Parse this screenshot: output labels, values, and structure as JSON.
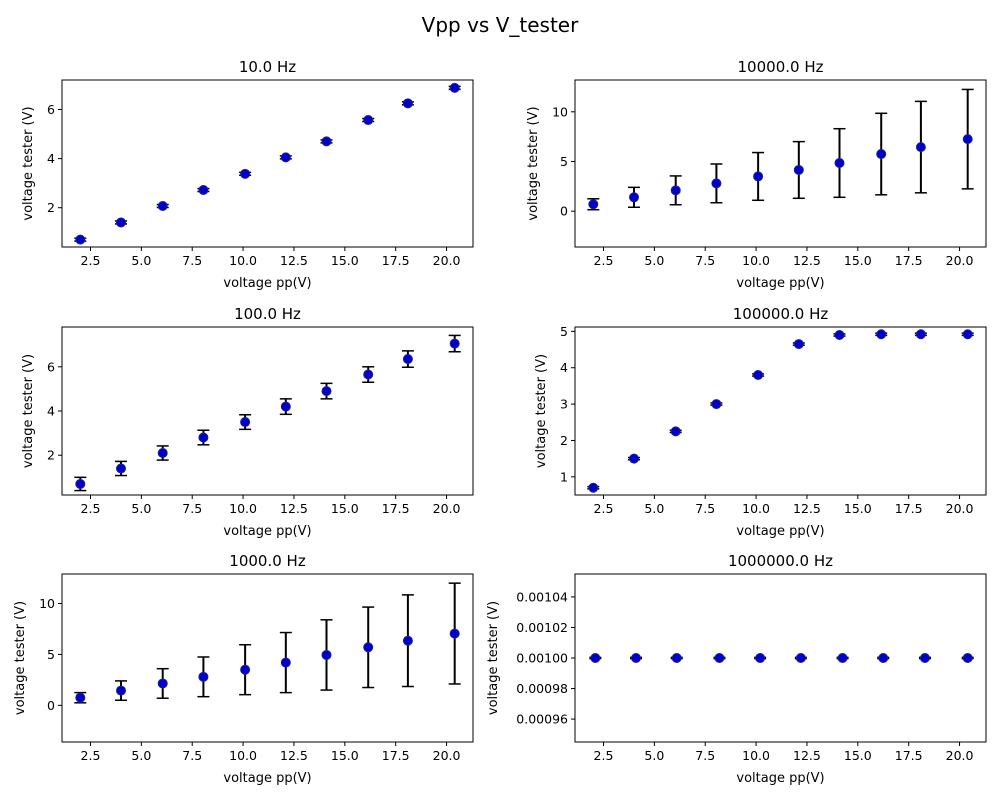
{
  "figure": {
    "suptitle": "Vpp vs V_tester"
  },
  "colors": {
    "marker_face": "#0000cc",
    "marker_edge": "#1f1f8f",
    "error_bar": "#000000"
  },
  "chart_data": [
    {
      "type": "scatter",
      "title": "10.0 Hz",
      "xlabel": "voltage pp(V)",
      "ylabel": "voltage tester (V)",
      "xlim": [
        1.1,
        21.3
      ],
      "ylim": [
        0.4,
        7.2
      ],
      "xticks": [
        2.5,
        5.0,
        7.5,
        10.0,
        12.5,
        15.0,
        17.5,
        20.0
      ],
      "xtick_labels": [
        "2.5",
        "5.0",
        "7.5",
        "10.0",
        "12.5",
        "15.0",
        "17.5",
        "20.0"
      ],
      "yticks": [
        2,
        4,
        6
      ],
      "ytick_labels": [
        "2",
        "4",
        "6"
      ],
      "x": [
        2.0,
        4.0,
        6.05,
        8.05,
        10.1,
        12.1,
        14.1,
        16.15,
        18.1,
        20.4
      ],
      "y": [
        0.7,
        1.4,
        2.07,
        2.72,
        3.38,
        4.05,
        4.7,
        5.57,
        6.25,
        6.88
      ],
      "yerr": [
        0.06,
        0.06,
        0.06,
        0.06,
        0.06,
        0.06,
        0.06,
        0.06,
        0.06,
        0.06
      ],
      "grid": false
    },
    {
      "type": "scatter",
      "title": "10000.0 Hz",
      "xlabel": "voltage pp(V)",
      "ylabel": "voltage tester (V)",
      "xlim": [
        1.1,
        21.3
      ],
      "ylim": [
        -3.6,
        13.2
      ],
      "xticks": [
        2.5,
        5.0,
        7.5,
        10.0,
        12.5,
        15.0,
        17.5,
        20.0
      ],
      "xtick_labels": [
        "2.5",
        "5.0",
        "7.5",
        "10.0",
        "12.5",
        "15.0",
        "17.5",
        "20.0"
      ],
      "yticks": [
        0,
        5,
        10
      ],
      "ytick_labels": [
        "0",
        "5",
        "10"
      ],
      "x": [
        2.0,
        4.0,
        6.05,
        8.05,
        10.1,
        12.1,
        14.1,
        16.15,
        18.1,
        20.4
      ],
      "y": [
        0.7,
        1.4,
        2.1,
        2.8,
        3.5,
        4.15,
        4.85,
        5.75,
        6.45,
        7.25
      ],
      "yerr": [
        0.55,
        1.0,
        1.45,
        1.95,
        2.4,
        2.85,
        3.45,
        4.1,
        4.6,
        5.0
      ],
      "grid": false
    },
    {
      "type": "scatter",
      "title": "100.0 Hz",
      "xlabel": "voltage pp(V)",
      "ylabel": "voltage tester (V)",
      "xlim": [
        1.1,
        21.3
      ],
      "ylim": [
        0.2,
        7.8
      ],
      "xticks": [
        2.5,
        5.0,
        7.5,
        10.0,
        12.5,
        15.0,
        17.5,
        20.0
      ],
      "xtick_labels": [
        "2.5",
        "5.0",
        "7.5",
        "10.0",
        "12.5",
        "15.0",
        "17.5",
        "20.0"
      ],
      "yticks": [
        2,
        4,
        6
      ],
      "ytick_labels": [
        "2",
        "4",
        "6"
      ],
      "x": [
        2.0,
        4.0,
        6.05,
        8.05,
        10.1,
        12.1,
        14.1,
        16.15,
        18.1,
        20.4
      ],
      "y": [
        0.7,
        1.4,
        2.1,
        2.8,
        3.5,
        4.2,
        4.9,
        5.65,
        6.35,
        7.05
      ],
      "yerr": [
        0.3,
        0.32,
        0.32,
        0.33,
        0.33,
        0.35,
        0.35,
        0.35,
        0.37,
        0.37
      ],
      "grid": false
    },
    {
      "type": "scatter",
      "title": "100000.0 Hz",
      "xlabel": "voltage pp(V)",
      "ylabel": "voltage tester (V)",
      "xlim": [
        1.1,
        21.3
      ],
      "ylim": [
        0.5,
        5.12
      ],
      "xticks": [
        2.5,
        5.0,
        7.5,
        10.0,
        12.5,
        15.0,
        17.5,
        20.0
      ],
      "xtick_labels": [
        "2.5",
        "5.0",
        "7.5",
        "10.0",
        "12.5",
        "15.0",
        "17.5",
        "20.0"
      ],
      "yticks": [
        1,
        2,
        3,
        4,
        5
      ],
      "ytick_labels": [
        "1",
        "2",
        "3",
        "4",
        "5"
      ],
      "x": [
        2.0,
        4.0,
        6.05,
        8.05,
        10.1,
        12.1,
        14.1,
        16.15,
        18.1,
        20.4
      ],
      "y": [
        0.7,
        1.5,
        2.25,
        3.0,
        3.8,
        4.65,
        4.9,
        4.92,
        4.92,
        4.92
      ],
      "yerr": [
        0.03,
        0.03,
        0.03,
        0.03,
        0.03,
        0.03,
        0.03,
        0.03,
        0.03,
        0.03
      ],
      "grid": false
    },
    {
      "type": "scatter",
      "title": "1000.0 Hz",
      "xlabel": "voltage pp(V)",
      "ylabel": "voltage tester (V)",
      "xlim": [
        1.1,
        21.3
      ],
      "ylim": [
        -3.6,
        12.9
      ],
      "xticks": [
        2.5,
        5.0,
        7.5,
        10.0,
        12.5,
        15.0,
        17.5,
        20.0
      ],
      "xtick_labels": [
        "2.5",
        "5.0",
        "7.5",
        "10.0",
        "12.5",
        "15.0",
        "17.5",
        "20.0"
      ],
      "yticks": [
        0,
        5,
        10
      ],
      "ytick_labels": [
        "0",
        "5",
        "10"
      ],
      "x": [
        2.0,
        4.0,
        6.05,
        8.05,
        10.1,
        12.1,
        14.1,
        16.15,
        18.1,
        20.4
      ],
      "y": [
        0.75,
        1.45,
        2.15,
        2.8,
        3.5,
        4.2,
        4.95,
        5.7,
        6.35,
        7.05
      ],
      "yerr": [
        0.5,
        0.95,
        1.45,
        1.95,
        2.45,
        2.95,
        3.45,
        3.95,
        4.5,
        4.95
      ],
      "grid": false
    },
    {
      "type": "scatter",
      "title": "1000000.0 Hz",
      "xlabel": "voltage pp(V)",
      "ylabel": "voltage tester (V)",
      "xlim": [
        1.1,
        21.3
      ],
      "ylim": [
        0.000945,
        0.001055
      ],
      "xticks": [
        2.5,
        5.0,
        7.5,
        10.0,
        12.5,
        15.0,
        17.5,
        20.0
      ],
      "xtick_labels": [
        "2.5",
        "5.0",
        "7.5",
        "10.0",
        "12.5",
        "15.0",
        "17.5",
        "20.0"
      ],
      "yticks": [
        0.00096,
        0.00098,
        0.001,
        0.00102,
        0.00104
      ],
      "ytick_labels": [
        "0.00096",
        "0.00098",
        "0.00100",
        "0.00102",
        "0.00104"
      ],
      "x": [
        2.1,
        4.1,
        6.1,
        8.2,
        10.2,
        12.2,
        14.25,
        16.25,
        18.3,
        20.4
      ],
      "y": [
        0.001,
        0.001,
        0.001,
        0.001,
        0.001,
        0.001,
        0.001,
        0.001,
        0.001,
        0.001
      ],
      "yerr": [
        4e-07,
        4e-07,
        4e-07,
        4e-07,
        4e-07,
        4e-07,
        4e-07,
        4e-07,
        4e-07,
        4e-07
      ],
      "grid": false
    }
  ]
}
